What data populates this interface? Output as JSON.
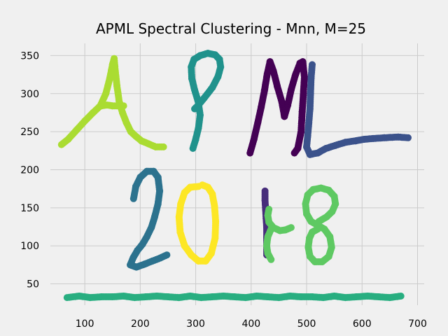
{
  "chart_data": {
    "type": "scatter",
    "title": "APML Spectral Clustering - Mnn, M=25",
    "xlabel": "",
    "ylabel": "",
    "xlim": [
      38,
      712
    ],
    "ylim": [
      22,
      366
    ],
    "x_ticks": [
      100,
      200,
      300,
      400,
      500,
      600,
      700
    ],
    "y_ticks": [
      50,
      100,
      150,
      200,
      250,
      300,
      350
    ],
    "x_tick_labels": [
      "100",
      "200",
      "300",
      "400",
      "500",
      "600",
      "700"
    ],
    "y_tick_labels": [
      "50",
      "100",
      "150",
      "200",
      "250",
      "300",
      "350"
    ],
    "grid": true,
    "legend": "none",
    "point_radius_hint": "markers are large filled circles",
    "series": [
      {
        "color": "#aadc32",
        "strokes": [
          [
            [
              58,
              233
            ],
            [
              70,
              240
            ],
            [
              85,
              252
            ],
            [
              100,
              264
            ],
            [
              115,
              275
            ],
            [
              128,
              284
            ],
            [
              138,
              300
            ],
            [
              145,
              320
            ],
            [
              150,
              338
            ],
            [
              153,
              346
            ],
            [
              155,
              330
            ],
            [
              158,
              310
            ],
            [
              162,
              290
            ],
            [
              168,
              275
            ],
            [
              175,
              262
            ],
            [
              183,
              250
            ],
            [
              192,
              244
            ],
            [
              202,
              238
            ],
            [
              215,
              234
            ],
            [
              228,
              230
            ],
            [
              242,
              230
            ]
          ],
          [
            [
              130,
              284
            ],
            [
              140,
              285
            ],
            [
              150,
              284
            ],
            [
              160,
              284
            ],
            [
              170,
              284
            ]
          ]
        ]
      },
      {
        "color": "#20928c",
        "strokes": [
          [
            [
              295,
              228
            ],
            [
              300,
              240
            ],
            [
              305,
              255
            ],
            [
              308,
              272
            ],
            [
              305,
              288
            ],
            [
              298,
              305
            ],
            [
              293,
              320
            ],
            [
              292,
              335
            ],
            [
              297,
              345
            ],
            [
              308,
              350
            ],
            [
              322,
              353
            ],
            [
              335,
              351
            ],
            [
              343,
              345
            ],
            [
              345,
              335
            ],
            [
              340,
              322
            ],
            [
              330,
              308
            ],
            [
              315,
              294
            ],
            [
              305,
              285
            ],
            [
              298,
              280
            ]
          ]
        ]
      },
      {
        "color": "#440154",
        "strokes": [
          [
            [
              398,
              222
            ],
            [
              405,
              240
            ],
            [
              412,
              262
            ],
            [
              418,
              282
            ],
            [
              424,
              304
            ],
            [
              429,
              326
            ],
            [
              434,
              342
            ],
            [
              440,
              330
            ],
            [
              447,
              310
            ],
            [
              455,
              290
            ],
            [
              460,
              270
            ],
            [
              466,
              285
            ],
            [
              472,
              305
            ],
            [
              480,
              325
            ],
            [
              488,
              340
            ],
            [
              493,
              342
            ],
            [
              496,
              322
            ],
            [
              494,
              298
            ],
            [
              492,
              276
            ],
            [
              490,
              250
            ],
            [
              484,
              228
            ],
            [
              478,
              222
            ]
          ]
        ]
      },
      {
        "color": "#3b528b",
        "strokes": [
          [
            [
              510,
              338
            ],
            [
              508,
              320
            ],
            [
              507,
              300
            ],
            [
              506,
              280
            ],
            [
              504,
              262
            ],
            [
              502,
              245
            ],
            [
              500,
              230
            ],
            [
              506,
              220
            ],
            [
              520,
              222
            ],
            [
              535,
              228
            ],
            [
              552,
              232
            ],
            [
              570,
              236
            ],
            [
              588,
              238
            ],
            [
              604,
              240
            ],
            [
              620,
              241
            ],
            [
              640,
              242
            ],
            [
              665,
              243
            ],
            [
              683,
              242
            ]
          ]
        ]
      },
      {
        "color": "#2c728e",
        "strokes": [
          [
            [
              188,
              162
            ],
            [
              192,
              178
            ],
            [
              200,
              190
            ],
            [
              212,
              198
            ],
            [
              224,
              198
            ],
            [
              232,
              190
            ],
            [
              235,
              172
            ],
            [
              232,
              155
            ],
            [
              226,
              138
            ],
            [
              220,
              124
            ],
            [
              212,
              112
            ],
            [
              204,
              102
            ],
            [
              195,
              94
            ],
            [
              187,
              84
            ],
            [
              182,
              75
            ],
            [
              193,
              72
            ],
            [
              208,
              76
            ],
            [
              222,
              80
            ],
            [
              236,
              84
            ],
            [
              248,
              88
            ]
          ]
        ]
      },
      {
        "color": "#fde725",
        "strokes": [
          [
            [
              305,
              178
            ],
            [
              290,
              177
            ],
            [
              280,
              170
            ],
            [
              273,
              155
            ],
            [
              270,
              138
            ],
            [
              272,
              118
            ],
            [
              280,
              100
            ],
            [
              292,
              88
            ],
            [
              305,
              80
            ],
            [
              318,
              80
            ],
            [
              328,
              90
            ],
            [
              335,
              110
            ],
            [
              336,
              132
            ],
            [
              334,
              152
            ],
            [
              330,
              168
            ],
            [
              322,
              177
            ],
            [
              312,
              180
            ]
          ]
        ]
      },
      {
        "color": "#472d7b",
        "strokes": [
          [
            [
              425,
              172
            ],
            [
              425,
              160
            ],
            [
              426,
              148
            ],
            [
              427,
              136
            ],
            [
              428,
              124
            ],
            [
              428,
              112
            ],
            [
              428,
              100
            ],
            [
              428,
              88
            ]
          ]
        ]
      },
      {
        "color": "#5ec962",
        "strokes": [
          [
            [
              520,
              122
            ],
            [
              510,
              118
            ],
            [
              505,
              110
            ],
            [
              503,
              98
            ],
            [
              506,
              86
            ],
            [
              515,
              79
            ],
            [
              528,
              79
            ],
            [
              540,
              86
            ],
            [
              545,
              98
            ],
            [
              542,
              112
            ],
            [
              532,
              122
            ],
            [
              518,
              128
            ],
            [
              508,
              132
            ],
            [
              500,
              142
            ],
            [
              498,
              155
            ],
            [
              502,
              167
            ],
            [
              512,
              174
            ],
            [
              526,
              176
            ],
            [
              540,
              173
            ],
            [
              550,
              165
            ],
            [
              552,
              155
            ],
            [
              546,
              145
            ],
            [
              536,
              138
            ],
            [
              522,
              132
            ]
          ],
          [
            [
              432,
              148
            ],
            [
              430,
              140
            ],
            [
              432,
              131
            ],
            [
              440,
              124
            ],
            [
              452,
              120
            ],
            [
              462,
              121
            ],
            [
              472,
              124
            ]
          ],
          [
            [
              436,
              82
            ],
            [
              430,
              90
            ],
            [
              428,
              100
            ],
            [
              430,
              112
            ],
            [
              436,
              122
            ]
          ]
        ]
      },
      {
        "color": "#28ae80",
        "strokes": [
          [
            [
              68,
              32
            ],
            [
              90,
              34
            ],
            [
              110,
              32
            ],
            [
              130,
              33
            ],
            [
              150,
              33
            ],
            [
              170,
              34
            ],
            [
              190,
              32
            ],
            [
              210,
              33
            ],
            [
              230,
              34
            ],
            [
              250,
              33
            ],
            [
              270,
              32
            ],
            [
              290,
              34
            ],
            [
              310,
              32
            ],
            [
              330,
              33
            ],
            [
              350,
              34
            ],
            [
              370,
              33
            ],
            [
              390,
              32
            ],
            [
              410,
              34
            ],
            [
              430,
              33
            ],
            [
              450,
              32
            ],
            [
              470,
              34
            ],
            [
              490,
              33
            ],
            [
              510,
              33
            ],
            [
              530,
              32
            ],
            [
              550,
              34
            ],
            [
              570,
              32
            ],
            [
              590,
              33
            ],
            [
              610,
              34
            ],
            [
              630,
              33
            ],
            [
              650,
              32
            ],
            [
              670,
              34
            ]
          ]
        ]
      }
    ]
  }
}
